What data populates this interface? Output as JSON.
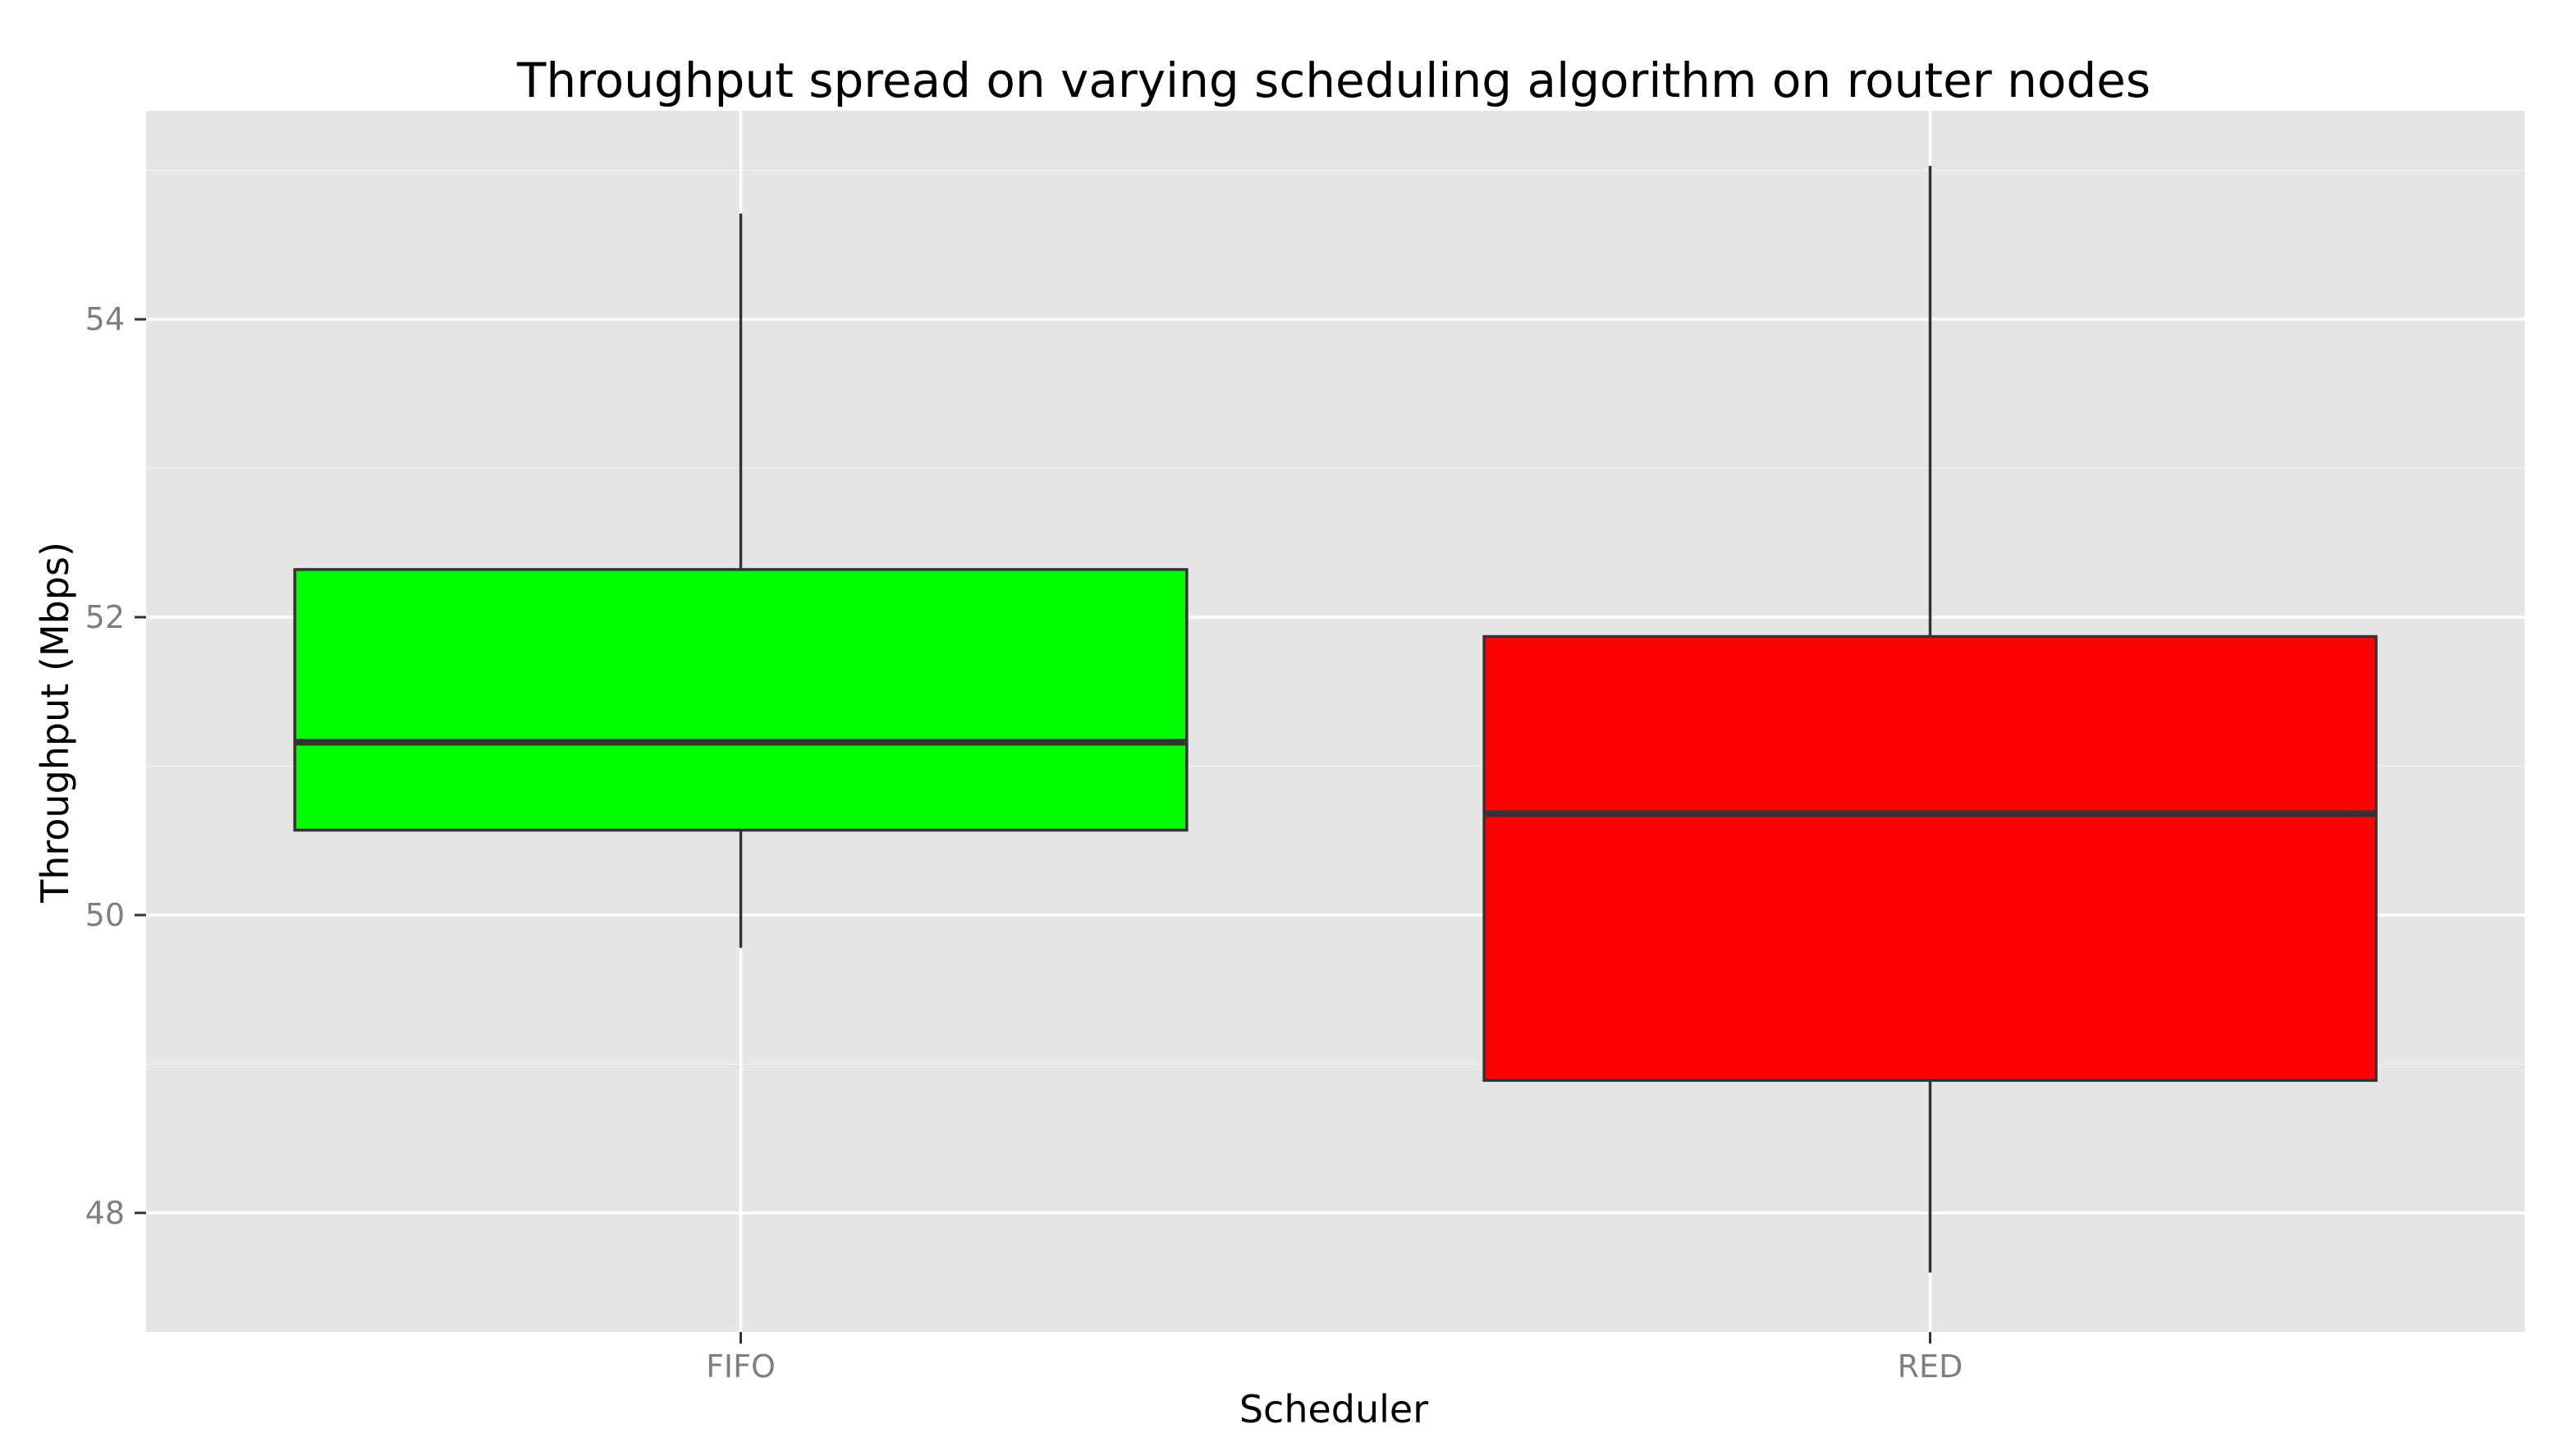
{
  "chart_data": {
    "type": "box",
    "title": "Throughput spread on varying scheduling algorithm on router nodes",
    "xlabel": "Scheduler",
    "ylabel": "Throughput (Mbps)",
    "ylim": [
      47.2,
      55.4
    ],
    "yticks": [
      48,
      50,
      52,
      54
    ],
    "ytick_labels": [
      "48",
      "50",
      "52",
      "54"
    ],
    "grid": true,
    "categories": [
      "FIFO",
      "RED"
    ],
    "boxes": [
      {
        "category": "FIFO",
        "whisker_low": 49.78,
        "q1": 50.57,
        "median": 51.16,
        "q3": 52.32,
        "whisker_high": 54.71,
        "fill": "#00ff00"
      },
      {
        "category": "RED",
        "whisker_low": 47.6,
        "q1": 48.89,
        "median": 50.68,
        "q3": 51.87,
        "whisker_high": 55.03,
        "fill": "#ff0000"
      }
    ],
    "colors": {
      "panel": "#e5e5e5",
      "grid": "#ffffff",
      "box_outline": "#333333"
    }
  }
}
